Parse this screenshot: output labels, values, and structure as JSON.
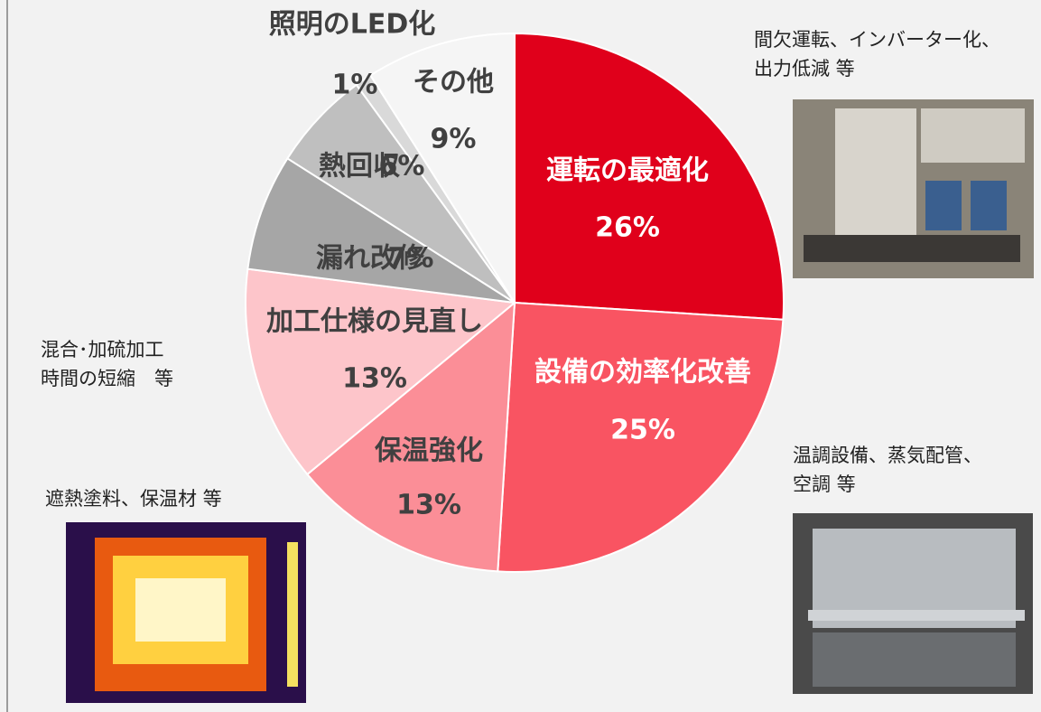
{
  "chart_data": {
    "type": "pie",
    "categories": [
      "運転の最適化",
      "設備の効率化改善",
      "保温強化",
      "加工仕様の見直し",
      "漏れ改修",
      "熱回収",
      "照明のLED化",
      "その他"
    ],
    "values": [
      26,
      25,
      13,
      13,
      7,
      6,
      1,
      9
    ],
    "value_labels": [
      "26%",
      "25%",
      "13%",
      "13%",
      "7%",
      "6%",
      "1%",
      "9%"
    ],
    "colors": [
      "#e0001b",
      "#f95462",
      "#fb8e97",
      "#fdc5ca",
      "#a6a6a6",
      "#bfbfbf",
      "#d9d9d9",
      "#f5f5f5"
    ],
    "annotations": [
      [
        "間欠運転、インバーター化、",
        "出力低減 等"
      ],
      [
        "混合･加硫加工",
        "時間の短縮　等"
      ],
      [
        "遮熱塗料、保温材 等"
      ],
      [
        "温調設備、蒸気配管、",
        "空調 等"
      ]
    ]
  }
}
